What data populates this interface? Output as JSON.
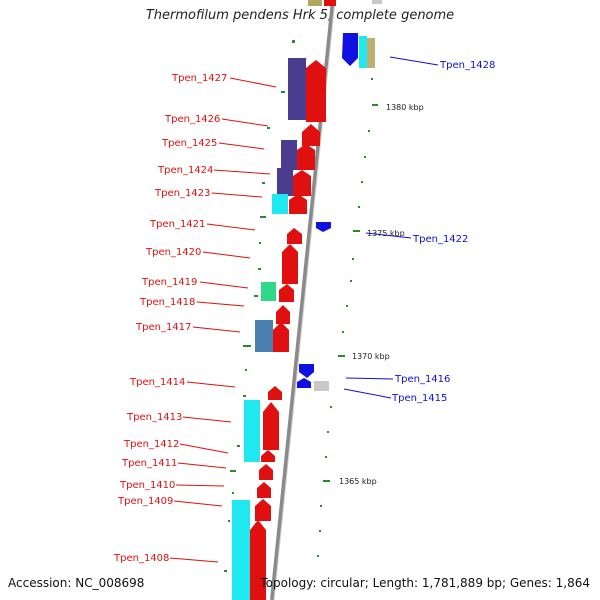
{
  "title": "Thermofilum pendens Hrk 5, complete genome",
  "accession": "Accession: NC_008698",
  "summary": "Topology: circular; Length: 1,781,889 bp; Genes: 1,864",
  "colors": {
    "label_left": "#e01010",
    "label_right": "#1010d0",
    "backbone": "#8a8a8a",
    "tick": "#2a8a2a"
  },
  "left_genes": [
    {
      "name": "Tpen_1427"
    },
    {
      "name": "Tpen_1426"
    },
    {
      "name": "Tpen_1425"
    },
    {
      "name": "Tpen_1424"
    },
    {
      "name": "Tpen_1423"
    },
    {
      "name": "Tpen_1421"
    },
    {
      "name": "Tpen_1420"
    },
    {
      "name": "Tpen_1419"
    },
    {
      "name": "Tpen_1418"
    },
    {
      "name": "Tpen_1417"
    },
    {
      "name": "Tpen_1414"
    },
    {
      "name": "Tpen_1413"
    },
    {
      "name": "Tpen_1412"
    },
    {
      "name": "Tpen_1411"
    },
    {
      "name": "Tpen_1410"
    },
    {
      "name": "Tpen_1409"
    },
    {
      "name": "Tpen_1408"
    }
  ],
  "right_genes": [
    {
      "name": "Tpen_1428"
    },
    {
      "name": "Tpen_1422"
    },
    {
      "name": "Tpen_1416"
    },
    {
      "name": "Tpen_1415"
    }
  ],
  "scale_marks": [
    {
      "label": "1380 kbp"
    },
    {
      "label": "1375 kbp"
    },
    {
      "label": "1370 kbp"
    },
    {
      "label": "1365 kbp"
    }
  ]
}
